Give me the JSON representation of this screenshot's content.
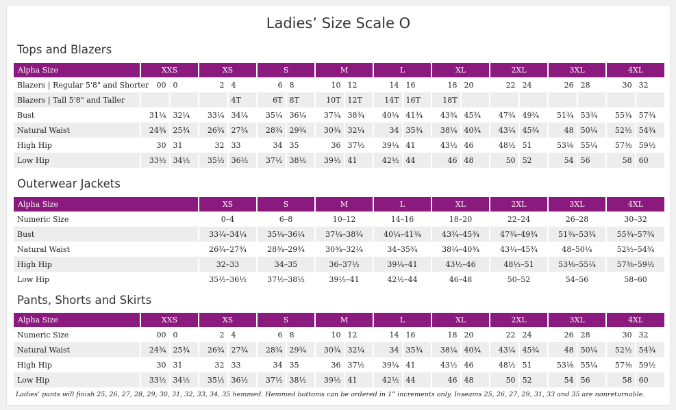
{
  "page_title": "Ladies’ Size Scale O",
  "tops": {
    "title": "Tops and Blazers",
    "headers": [
      "Alpha Size",
      "XXS",
      "XS",
      "S",
      "M",
      "L",
      "XL",
      "2XL",
      "3XL",
      "4XL"
    ],
    "rows": [
      {
        "label": "Blazers | Regular 5'8\" and Shorter",
        "cells": [
          [
            "00",
            "0"
          ],
          [
            "2",
            "4"
          ],
          [
            "6",
            "8"
          ],
          [
            "10",
            "12"
          ],
          [
            "14",
            "16"
          ],
          [
            "18",
            "20"
          ],
          [
            "22",
            "24"
          ],
          [
            "26",
            "28"
          ],
          [
            "30",
            "32"
          ]
        ]
      },
      {
        "label": "Blazers | Tall 5'8\" and Taller",
        "cells": [
          [
            "",
            ""
          ],
          [
            "",
            "4T"
          ],
          [
            "6T",
            "8T"
          ],
          [
            "10T",
            "12T"
          ],
          [
            "14T",
            "16T"
          ],
          [
            "18T",
            ""
          ],
          [
            "",
            ""
          ],
          [
            "",
            ""
          ],
          [
            "",
            ""
          ]
        ]
      },
      {
        "label": "Bust",
        "cells": [
          [
            "31¼",
            "32¼"
          ],
          [
            "33¼",
            "34¼"
          ],
          [
            "35¼",
            "36¼"
          ],
          [
            "37¼",
            "38¾"
          ],
          [
            "40¼",
            "41¾"
          ],
          [
            "43¾",
            "45¾"
          ],
          [
            "47¾",
            "49¾"
          ],
          [
            "51¾",
            "53¾"
          ],
          [
            "55¾",
            "57¾"
          ]
        ]
      },
      {
        "label": "Natural Waist",
        "cells": [
          [
            "24¾",
            "25¾"
          ],
          [
            "26¾",
            "27¾"
          ],
          [
            "28¾",
            "29¾"
          ],
          [
            "30¾",
            "32¼"
          ],
          [
            "34",
            "35¾"
          ],
          [
            "38¼",
            "40¾"
          ],
          [
            "43¼",
            "45¾"
          ],
          [
            "48",
            "50¼"
          ],
          [
            "52½",
            "54¾"
          ]
        ]
      },
      {
        "label": "High Hip",
        "cells": [
          [
            "30",
            "31"
          ],
          [
            "32",
            "33"
          ],
          [
            "34",
            "35"
          ],
          [
            "36",
            "37½"
          ],
          [
            "39¼",
            "41"
          ],
          [
            "43½",
            "46"
          ],
          [
            "48½",
            "51"
          ],
          [
            "53⅛",
            "55¼"
          ],
          [
            "57⅜",
            "59½"
          ]
        ]
      },
      {
        "label": "Low Hip",
        "cells": [
          [
            "33½",
            "34½"
          ],
          [
            "35½",
            "36½"
          ],
          [
            "37½",
            "38½"
          ],
          [
            "39½",
            "41"
          ],
          [
            "42½",
            "44"
          ],
          [
            "46",
            "48"
          ],
          [
            "50",
            "52"
          ],
          [
            "54",
            "56"
          ],
          [
            "58",
            "60"
          ]
        ]
      }
    ]
  },
  "outerwear": {
    "title": "Outerwear Jackets",
    "headers": [
      "Alpha Size",
      "XS",
      "S",
      "M",
      "L",
      "XL",
      "2XL",
      "3XL",
      "4XL"
    ],
    "rows": [
      {
        "label": "Numeric Size",
        "cells": [
          "0–4",
          "6–8",
          "10–12",
          "14–16",
          "18–20",
          "22–24",
          "26–28",
          "30–32"
        ]
      },
      {
        "label": "Bust",
        "cells": [
          "33¼–34¼",
          "35¼–36¼",
          "37¼–38¾",
          "40¼–41¾",
          "43¾–45¾",
          "47¾–49¾",
          "51¾–53¾",
          "55¾–57¾"
        ]
      },
      {
        "label": "Natural Waist",
        "cells": [
          "26¾–27¾",
          "28¾–29¾",
          "30¾–32¼",
          "34–35¾",
          "38¼–40¾",
          "43¼–45¾",
          "48–50¼",
          "52½–54¾"
        ]
      },
      {
        "label": "High Hip",
        "cells": [
          "32–33",
          "34–35",
          "36–37½",
          "39¼–41",
          "43½–46",
          "48½–51",
          "53⅛–55¼",
          "57⅜–59½"
        ]
      },
      {
        "label": "Low Hip",
        "cells": [
          "35½–36½",
          "37½–38½",
          "39½–41",
          "42½–44",
          "46–48",
          "50–52",
          "54–56",
          "58–60"
        ]
      }
    ]
  },
  "pants": {
    "title": "Pants, Shorts and Skirts",
    "headers": [
      "Alpha Size",
      "XXS",
      "XS",
      "S",
      "M",
      "L",
      "XL",
      "2XL",
      "3XL",
      "4XL"
    ],
    "rows": [
      {
        "label": "Numeric Size",
        "cells": [
          [
            "00",
            "0"
          ],
          [
            "2",
            "4"
          ],
          [
            "6",
            "8"
          ],
          [
            "10",
            "12"
          ],
          [
            "14",
            "16"
          ],
          [
            "18",
            "20"
          ],
          [
            "22",
            "24"
          ],
          [
            "26",
            "28"
          ],
          [
            "30",
            "32"
          ]
        ]
      },
      {
        "label": "Natural Waist",
        "cells": [
          [
            "24¾",
            "25¾"
          ],
          [
            "26¾",
            "27¾"
          ],
          [
            "28¾",
            "29¾"
          ],
          [
            "30¾",
            "32¼"
          ],
          [
            "34",
            "35¾"
          ],
          [
            "38¼",
            "40¾"
          ],
          [
            "43¼",
            "45¾"
          ],
          [
            "48",
            "50¼"
          ],
          [
            "52½",
            "54¾"
          ]
        ]
      },
      {
        "label": "High Hip",
        "cells": [
          [
            "30",
            "31"
          ],
          [
            "32",
            "33"
          ],
          [
            "34",
            "35"
          ],
          [
            "36",
            "37½"
          ],
          [
            "39¼",
            "41"
          ],
          [
            "43½",
            "46"
          ],
          [
            "48½",
            "51"
          ],
          [
            "53⅛",
            "55¼"
          ],
          [
            "57⅜",
            "59½"
          ]
        ]
      },
      {
        "label": "Low Hip",
        "cells": [
          [
            "33½",
            "34½"
          ],
          [
            "35½",
            "36½"
          ],
          [
            "37½",
            "38½"
          ],
          [
            "39½",
            "41"
          ],
          [
            "42½",
            "44"
          ],
          [
            "46",
            "48"
          ],
          [
            "50",
            "52"
          ],
          [
            "54",
            "56"
          ],
          [
            "58",
            "60"
          ]
        ]
      }
    ]
  },
  "footnote": "Ladies’ pants will finish 25, 26, 27, 28, 29, 30, 31, 32, 33, 34, 35 hemmed. Hemmed bottoms can be ordered in 1” increments only. Inseams 25, 26, 27, 29, 31, 33 and 35 are nonreturnable."
}
